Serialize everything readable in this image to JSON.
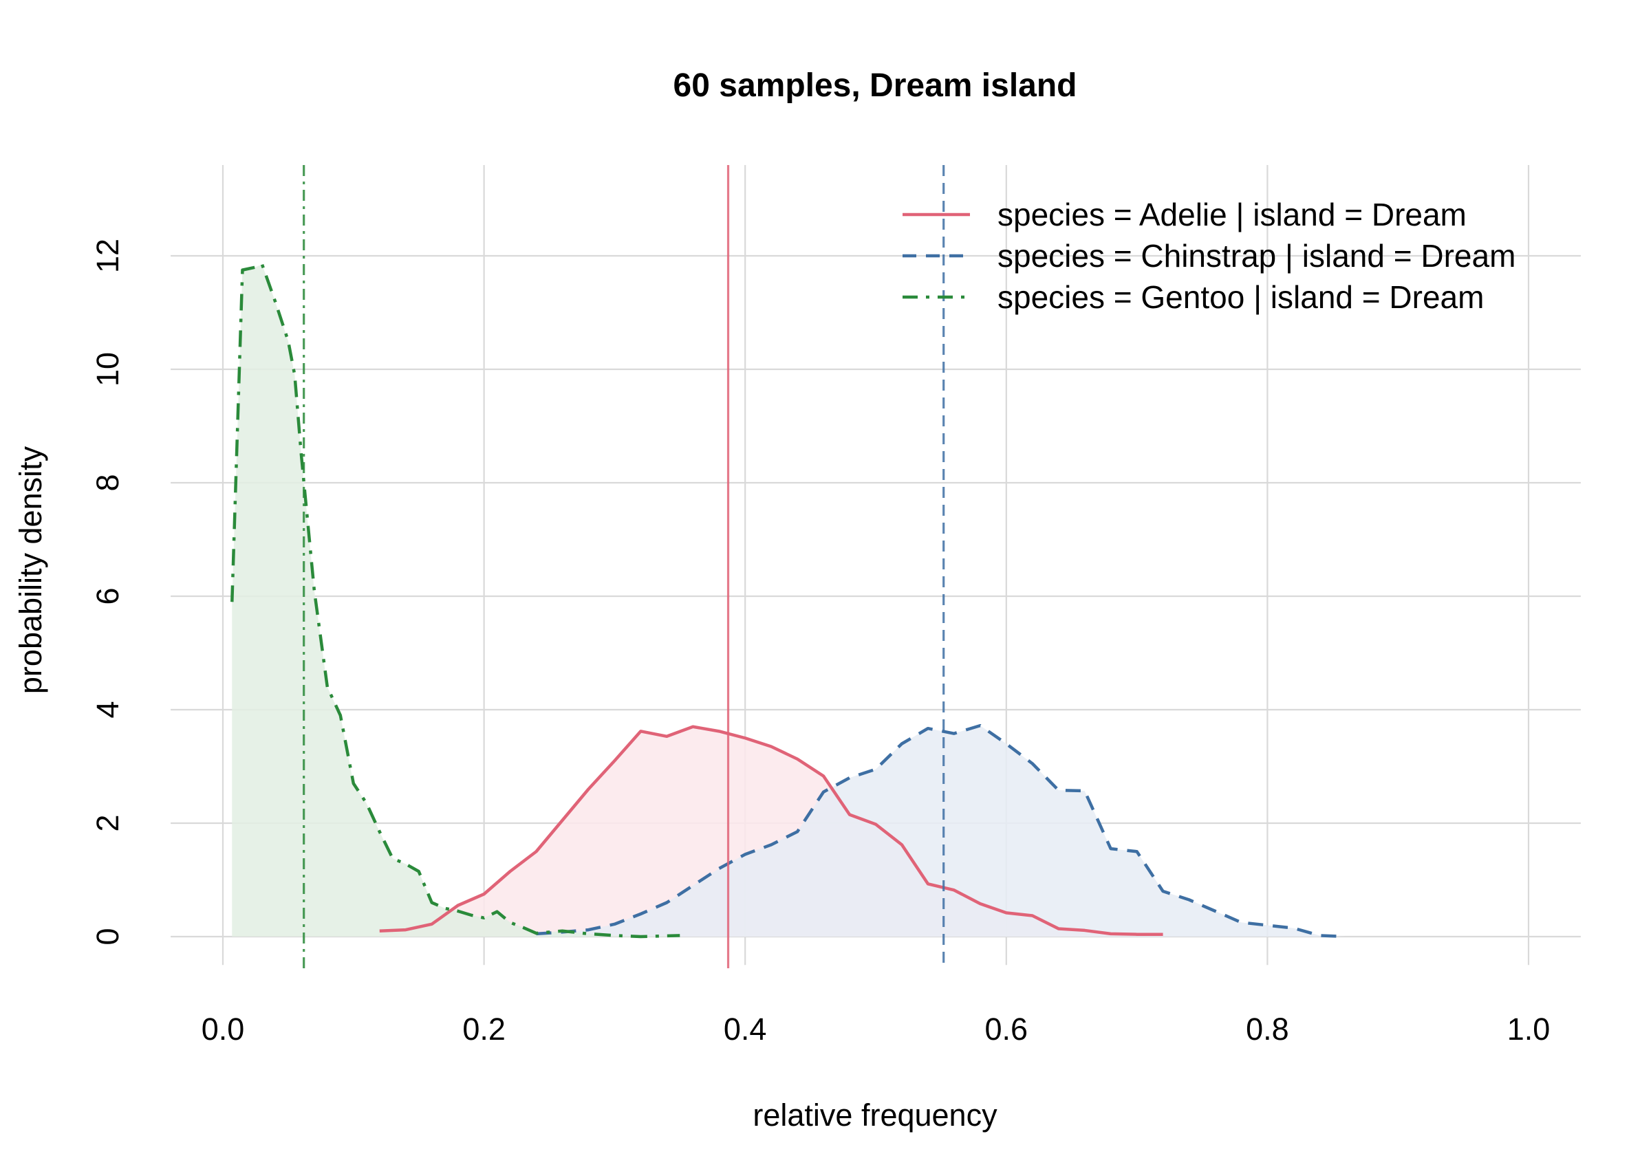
{
  "chart_data": {
    "type": "area",
    "title": "60 samples, Dream island",
    "xlabel": "relative frequency",
    "ylabel": "probability density",
    "xlim": [
      -0.04,
      1.04
    ],
    "ylim": [
      -0.5,
      13.6
    ],
    "xticks": [
      0.0,
      0.2,
      0.4,
      0.6,
      0.8,
      1.0
    ],
    "xtick_labels": [
      "0.0",
      "0.2",
      "0.4",
      "0.6",
      "0.8",
      "1.0"
    ],
    "yticks": [
      0,
      2,
      4,
      6,
      8,
      10,
      12
    ],
    "ytick_labels": [
      "0",
      "2",
      "4",
      "6",
      "8",
      "10",
      "12"
    ],
    "grid": true,
    "legend_position": "top-right",
    "series": [
      {
        "name": "species = Adelie | island = Dream",
        "color": "#e06377",
        "fill": "#fbe8eb",
        "dash": "solid",
        "mean": 0.387,
        "x": [
          0.12,
          0.14,
          0.16,
          0.18,
          0.2,
          0.22,
          0.24,
          0.26,
          0.28,
          0.3,
          0.32,
          0.34,
          0.36,
          0.38,
          0.4,
          0.42,
          0.44,
          0.46,
          0.48,
          0.5,
          0.52,
          0.54,
          0.56,
          0.58,
          0.6,
          0.62,
          0.64,
          0.66,
          0.68,
          0.7,
          0.72
        ],
        "y": [
          0.1,
          0.12,
          0.22,
          0.55,
          0.75,
          1.15,
          1.5,
          2.05,
          2.6,
          3.1,
          3.62,
          3.53,
          3.7,
          3.62,
          3.5,
          3.35,
          3.13,
          2.83,
          2.15,
          1.98,
          1.62,
          0.93,
          0.82,
          0.58,
          0.42,
          0.37,
          0.14,
          0.11,
          0.05,
          0.04,
          0.04
        ]
      },
      {
        "name": "species = Chinstrap | island = Dream",
        "color": "#3e6fa3",
        "fill": "#e6ecf5",
        "dash": "dashed",
        "mean": 0.552,
        "x": [
          0.24,
          0.26,
          0.28,
          0.3,
          0.32,
          0.34,
          0.36,
          0.38,
          0.4,
          0.42,
          0.44,
          0.46,
          0.48,
          0.5,
          0.52,
          0.54,
          0.56,
          0.58,
          0.6,
          0.62,
          0.64,
          0.66,
          0.68,
          0.7,
          0.72,
          0.74,
          0.76,
          0.78,
          0.8,
          0.82,
          0.84,
          0.86
        ],
        "y": [
          0.05,
          0.08,
          0.12,
          0.22,
          0.4,
          0.6,
          0.9,
          1.2,
          1.45,
          1.62,
          1.85,
          2.55,
          2.8,
          2.95,
          3.4,
          3.67,
          3.58,
          3.72,
          3.4,
          3.05,
          2.58,
          2.57,
          1.55,
          1.5,
          0.8,
          0.65,
          0.45,
          0.25,
          0.2,
          0.15,
          0.02,
          0.0
        ]
      },
      {
        "name": "species = Gentoo | island = Dream",
        "color": "#2a8a3a",
        "fill": "#e2efe3",
        "dash": "dotdash",
        "mean": 0.062,
        "x": [
          0.007,
          0.015,
          0.025,
          0.03,
          0.04,
          0.05,
          0.055,
          0.06,
          0.07,
          0.08,
          0.09,
          0.1,
          0.11,
          0.12,
          0.13,
          0.14,
          0.15,
          0.16,
          0.17,
          0.18,
          0.19,
          0.2,
          0.21,
          0.22,
          0.23,
          0.24,
          0.26,
          0.28,
          0.3,
          0.32,
          0.35
        ],
        "y": [
          5.9,
          11.75,
          11.8,
          11.85,
          11.2,
          10.5,
          9.9,
          8.5,
          6.1,
          4.4,
          3.9,
          2.7,
          2.35,
          1.85,
          1.38,
          1.28,
          1.15,
          0.6,
          0.5,
          0.45,
          0.38,
          0.33,
          0.44,
          0.25,
          0.16,
          0.06,
          0.1,
          0.05,
          0.02,
          0.0,
          0.02
        ]
      }
    ]
  }
}
